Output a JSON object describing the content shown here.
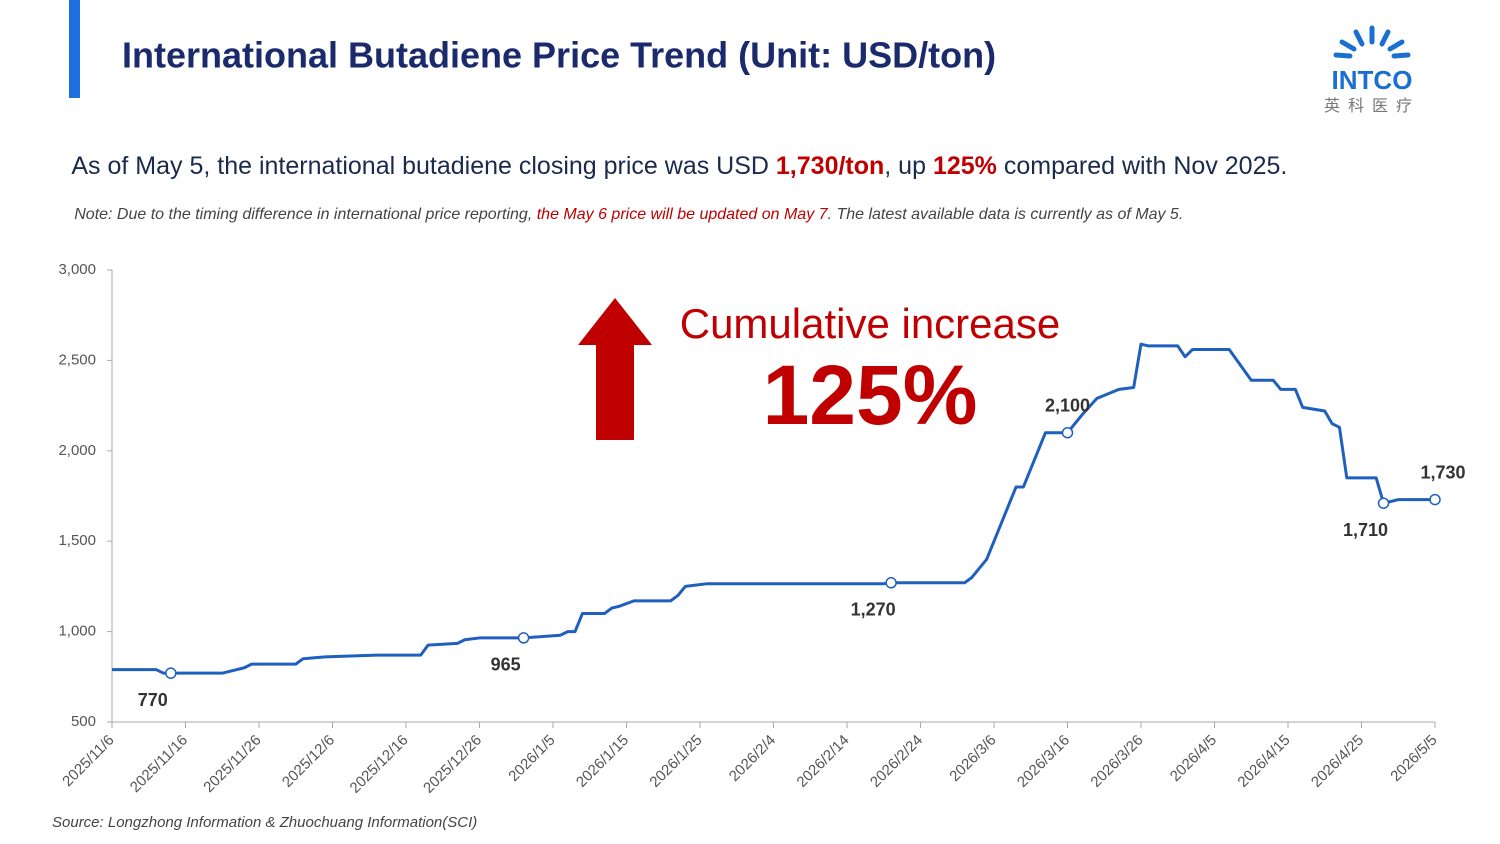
{
  "header": {
    "title": "International Butadiene Price Trend (Unit: USD/ton)",
    "logo_text": "INTCO",
    "logo_subtext": "英科医疗"
  },
  "summary": {
    "parts": [
      "As of May 5, the international butadiene closing price was USD ",
      "1,730/ton",
      ", up ",
      "125%",
      " compared with Nov 2025."
    ]
  },
  "note": {
    "parts": [
      "Note: Due to the timing difference in international price reporting, ",
      "the May 6 price will be updated on May 7",
      ". The latest available data is currently as of May 5."
    ]
  },
  "chart_data": {
    "type": "line",
    "color": "#1f5fbf",
    "x": [
      "2025/11/6",
      "2025/11/12",
      "2025/11/13",
      "2025/11/14",
      "2025/11/21",
      "2025/11/24",
      "2025/11/25",
      "2025/12/1",
      "2025/12/2",
      "2025/12/5",
      "2025/12/12",
      "2025/12/18",
      "2025/12/19",
      "2025/12/23",
      "2025/12/24",
      "2025/12/26",
      "2026/1/1",
      "2026/1/6",
      "2026/1/7",
      "2026/1/8",
      "2026/1/9",
      "2026/1/12",
      "2026/1/13",
      "2026/1/14",
      "2026/1/16",
      "2026/1/21",
      "2026/1/22",
      "2026/1/23",
      "2026/1/26",
      "2026/2/19",
      "2026/2/20",
      "2026/3/2",
      "2026/3/3",
      "2026/3/5",
      "2026/3/9",
      "2026/3/10",
      "2026/3/13",
      "2026/3/16",
      "2026/3/18",
      "2026/3/20",
      "2026/3/23",
      "2026/3/25",
      "2026/3/26",
      "2026/3/27",
      "2026/3/31",
      "2026/4/1",
      "2026/4/2",
      "2026/4/7",
      "2026/4/10",
      "2026/4/13",
      "2026/4/14",
      "2026/4/16",
      "2026/4/17",
      "2026/4/20",
      "2026/4/21",
      "2026/4/22",
      "2026/4/23",
      "2026/4/27",
      "2026/4/28",
      "2026/4/30",
      "2026/5/5"
    ],
    "values": [
      790,
      790,
      770,
      770,
      770,
      800,
      820,
      820,
      850,
      860,
      870,
      870,
      925,
      935,
      955,
      965,
      965,
      980,
      1000,
      1000,
      1100,
      1100,
      1130,
      1140,
      1170,
      1170,
      1200,
      1250,
      1265,
      1265,
      1270,
      1270,
      1300,
      1400,
      1800,
      1800,
      2100,
      2100,
      2200,
      2290,
      2340,
      2350,
      2590,
      2580,
      2580,
      2520,
      2560,
      2560,
      2390,
      2390,
      2340,
      2340,
      2240,
      2220,
      2150,
      2130,
      1850,
      1850,
      1710,
      1730,
      1730
    ],
    "value_labels": [
      null,
      null,
      null,
      "770",
      null,
      null,
      null,
      null,
      null,
      null,
      null,
      null,
      null,
      null,
      null,
      null,
      "965",
      null,
      null,
      null,
      null,
      null,
      null,
      null,
      null,
      null,
      null,
      null,
      null,
      null,
      "1,270",
      null,
      null,
      null,
      null,
      null,
      null,
      "2,100",
      null,
      null,
      null,
      null,
      null,
      null,
      null,
      null,
      null,
      null,
      null,
      null,
      null,
      null,
      null,
      null,
      null,
      null,
      null,
      null,
      "1,710",
      null,
      "1,730"
    ],
    "xlim": [
      "2025/11/6",
      "2026/5/5"
    ],
    "xticks": [
      "2025/11/6",
      "2025/11/16",
      "2025/11/26",
      "2025/12/6",
      "2025/12/16",
      "2025/12/26",
      "2026/1/5",
      "2026/1/15",
      "2026/1/25",
      "2026/2/4",
      "2026/2/14",
      "2026/2/24",
      "2026/3/6",
      "2026/3/16",
      "2026/3/26",
      "2026/4/5",
      "2026/4/15",
      "2026/4/25",
      "2026/5/5"
    ],
    "ylim": [
      500,
      3000
    ],
    "yticks": [
      500,
      {
        "value": 1000,
        "label": "1,000"
      },
      {
        "value": 1500,
        "label": "1,500"
      },
      {
        "value": 2000,
        "label": "2,000"
      },
      {
        "value": 2500,
        "label": "2,500"
      },
      {
        "value": 3000,
        "label": "3,000"
      }
    ],
    "grid": false,
    "annotation": {
      "label": "Cumulative increase",
      "value": "125%"
    }
  },
  "source": "Source: Longzhong Information & Zhuochuang Information(SCI)"
}
